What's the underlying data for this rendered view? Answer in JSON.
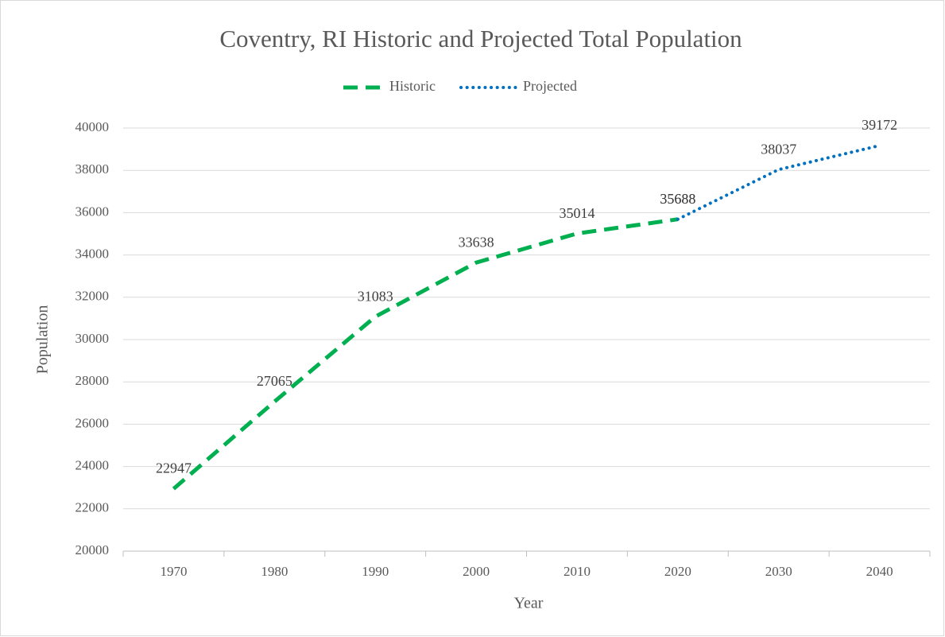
{
  "chart_data": {
    "type": "line",
    "title": "Coventry, RI Historic and Projected Total Population",
    "x_label": "Year",
    "y_label": "Population",
    "categories": [
      "1970",
      "1980",
      "1990",
      "2000",
      "2010",
      "2020",
      "2030",
      "2040"
    ],
    "series": [
      {
        "name": "Historic",
        "color": "#00b050",
        "style": "dashed",
        "values": [
          22947,
          27065,
          31083,
          33638,
          35014,
          35688,
          null,
          null
        ]
      },
      {
        "name": "Projected",
        "color": "#0070c0",
        "style": "dotted",
        "values": [
          null,
          null,
          null,
          null,
          null,
          35688,
          38037,
          39172
        ]
      }
    ],
    "ylim": [
      20000,
      40000
    ],
    "yticks": [
      20000,
      22000,
      24000,
      26000,
      28000,
      30000,
      32000,
      34000,
      36000,
      38000,
      40000
    ],
    "grid": true,
    "legend": "top"
  }
}
